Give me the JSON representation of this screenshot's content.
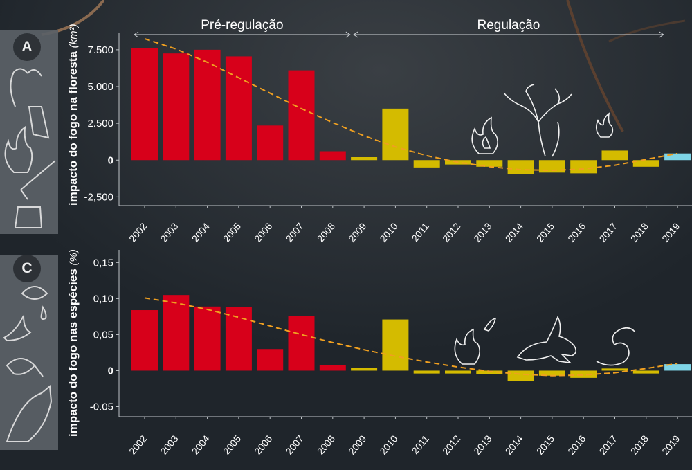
{
  "chart_data": [
    {
      "panel_label": "A",
      "type": "bar",
      "ylabel": "impacto do fogo na floresta",
      "yunit": "(km²)",
      "categories": [
        "2002",
        "2003",
        "2004",
        "2005",
        "2006",
        "2007",
        "2008",
        "2009",
        "2010",
        "2011",
        "2012",
        "2013",
        "2014",
        "2015",
        "2016",
        "2017",
        "2018",
        "2019"
      ],
      "values": [
        7600,
        7250,
        7500,
        7050,
        2350,
        6100,
        600,
        200,
        3500,
        -500,
        -300,
        -450,
        -950,
        -850,
        -900,
        650,
        -450,
        450
      ],
      "yticks": [
        "7.500",
        "5.000",
        "2.500",
        "0",
        "-2,500"
      ],
      "ytick_values": [
        7500,
        5000,
        2500,
        0,
        -2500
      ],
      "ylim": [
        -3000,
        8200
      ],
      "trend": [
        8250,
        7550,
        6650,
        5600,
        4550,
        3500,
        2550,
        1650,
        900,
        300,
        -150,
        -450,
        -650,
        -700,
        -600,
        -350,
        50,
        450
      ],
      "periods": [
        {
          "label": "Pré-regulação",
          "from": "2002",
          "to": "2008"
        },
        {
          "label": "Regulação",
          "from": "2009",
          "to": "2018"
        }
      ],
      "colors": {
        "pre": "#d7001a",
        "reg": "#d4bb00",
        "last": "#7ed4e6",
        "trend": "#f0a020"
      }
    },
    {
      "panel_label": "C",
      "type": "bar",
      "ylabel": "impacto do fogo nas espécies",
      "yunit": "(%)",
      "categories": [
        "2002",
        "2003",
        "2004",
        "2005",
        "2006",
        "2007",
        "2008",
        "2009",
        "2010",
        "2011",
        "2012",
        "2013",
        "2014",
        "2015",
        "2016",
        "2017",
        "2018",
        "2019"
      ],
      "values": [
        0.084,
        0.105,
        0.089,
        0.088,
        0.03,
        0.076,
        0.008,
        0.004,
        0.071,
        -0.004,
        -0.004,
        -0.005,
        -0.014,
        -0.007,
        -0.01,
        0.003,
        -0.004,
        0.009
      ],
      "yticks": [
        "0,15",
        "0,10",
        "0,05",
        "0",
        "-0.05"
      ],
      "ytick_values": [
        0.15,
        0.1,
        0.05,
        0,
        -0.05
      ],
      "ylim": [
        -0.062,
        0.158
      ],
      "trend": [
        0.101,
        0.094,
        0.085,
        0.074,
        0.062,
        0.05,
        0.039,
        0.029,
        0.02,
        0.012,
        0.005,
        -0.001,
        -0.005,
        -0.007,
        -0.006,
        -0.003,
        0.003,
        0.01
      ],
      "colors": {
        "pre": "#d7001a",
        "reg": "#d4bb00",
        "last": "#7ed4e6",
        "trend": "#f0a020"
      }
    }
  ],
  "icons": {
    "panel_a": [
      "tree-icon",
      "flame-icon",
      "axe-stump-icon"
    ],
    "panel_c": [
      "eye-icon",
      "bird-icon",
      "frog-icon",
      "fox-icon"
    ],
    "overlay_a": [
      "flame-icon",
      "burnt-tree-icon",
      "flame-icon"
    ],
    "overlay_c": [
      "flame-icon",
      "rabbit-icon",
      "snake-icon"
    ]
  }
}
